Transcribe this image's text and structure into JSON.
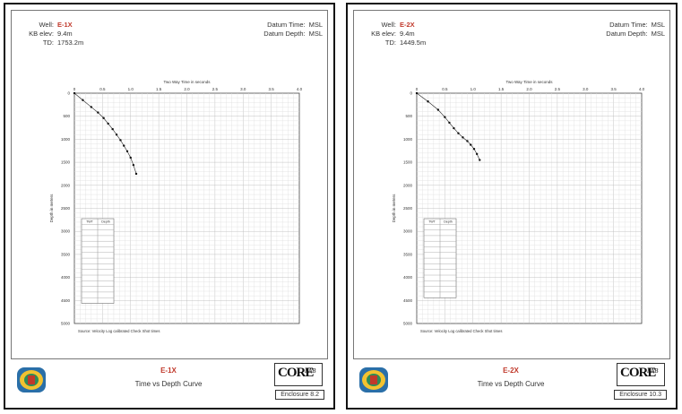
{
  "enclosures": [
    {
      "well_label": "Well:",
      "well": "E-1X",
      "kb_label": "KB elev:",
      "kb": "9.4m",
      "td_label": "TD:",
      "td": "1753.2m",
      "datum_time_label": "Datum Time:",
      "datum_time": "MSL",
      "datum_depth_label": "Datum Depth:",
      "datum_depth": "MSL",
      "title_well": "E-1X",
      "title_sub": "Time vs Depth Curve",
      "enclosure": "Enclosure 8.2",
      "corelab_big": "CORE",
      "corelab_small": "LAB",
      "source": "Source: Velocity Log calibrated Check Shot times",
      "table_header": [
        "TWT",
        "Depth"
      ],
      "table_rows": 14
    },
    {
      "well_label": "Well:",
      "well": "E-2X",
      "kb_label": "KB elev:",
      "kb": "9.4m",
      "td_label": "TD:",
      "td": "1449.5m",
      "datum_time_label": "Datum Time:",
      "datum_time": "MSL",
      "datum_depth_label": "Datum Depth:",
      "datum_depth": "MSL",
      "title_well": "E-2X",
      "title_sub": "Time vs Depth Curve",
      "enclosure": "Enclosure 10.3",
      "corelab_big": "CORE",
      "corelab_small": "LAB",
      "source": "Source: Velocity Log calibrated Check Shot times",
      "table_header": [
        "TWT",
        "Depth"
      ],
      "table_rows": 13
    }
  ],
  "chart_data": [
    {
      "type": "line",
      "title": "Two Way Time in seconds",
      "xlabel": "Two Way Time in seconds",
      "ylabel": "Depth in meters",
      "xlim": [
        0,
        4.0
      ],
      "ylim": [
        0,
        5000
      ],
      "xticks": [
        "0",
        "0.5",
        "1.0",
        "1.5",
        "2.0",
        "2.5",
        "3.0",
        "3.5",
        "4.0"
      ],
      "yticks": [
        "0",
        "500",
        "1000",
        "1500",
        "2000",
        "2500",
        "3000",
        "3500",
        "4000",
        "4500",
        "5000"
      ],
      "grid": true,
      "series": [
        {
          "x": [
            0.0,
            0.15,
            0.3,
            0.42,
            0.52,
            0.6,
            0.68,
            0.75,
            0.82,
            0.88,
            0.94,
            1.0,
            1.05,
            1.1
          ],
          "y": [
            0,
            150,
            300,
            420,
            540,
            660,
            780,
            900,
            1020,
            1140,
            1260,
            1400,
            1560,
            1750
          ]
        }
      ]
    },
    {
      "type": "line",
      "title": "Two Way Time in seconds",
      "xlabel": "Two Way Time in seconds",
      "ylabel": "Depth in meters",
      "xlim": [
        0,
        4.0
      ],
      "ylim": [
        0,
        5000
      ],
      "xticks": [
        "0",
        "0.5",
        "1.0",
        "1.5",
        "2.0",
        "2.5",
        "3.0",
        "3.5",
        "4.0"
      ],
      "yticks": [
        "0",
        "500",
        "1000",
        "1500",
        "2000",
        "2500",
        "3000",
        "3500",
        "4000",
        "4500",
        "5000"
      ],
      "grid": true,
      "series": [
        {
          "x": [
            0.0,
            0.2,
            0.38,
            0.5,
            0.58,
            0.66,
            0.74,
            0.82,
            0.9,
            0.96,
            1.02,
            1.07,
            1.12
          ],
          "y": [
            0,
            180,
            360,
            520,
            640,
            760,
            870,
            960,
            1040,
            1120,
            1210,
            1320,
            1450
          ]
        }
      ]
    }
  ]
}
